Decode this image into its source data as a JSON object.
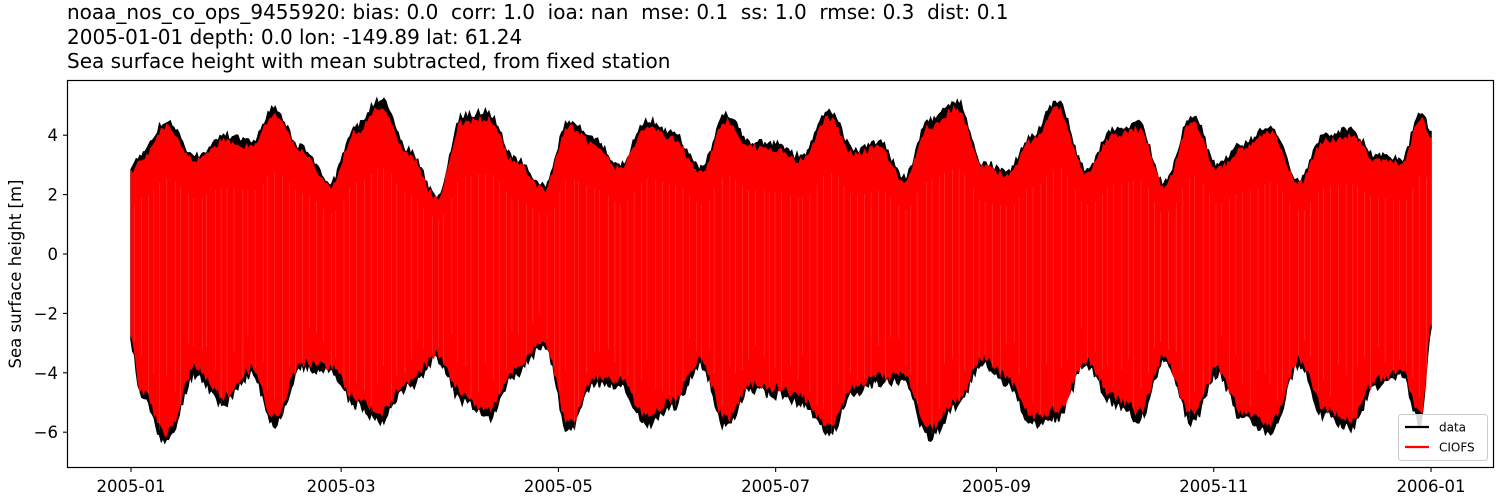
{
  "title": {
    "line1": "noaa_nos_co_ops_9455920: bias: 0.0  corr: 1.0  ioa: nan  mse: 0.1  ss: 1.0  rmse: 0.3  dist: 0.1",
    "line2": "2005-01-01 depth: 0.0 lon: -149.89 lat: 61.24",
    "line3": "Sea surface height with mean subtracted, from fixed station"
  },
  "colors": {
    "data": "#000000",
    "model": "#ff0000",
    "axes": "#000000",
    "legend_border": "#cccccc"
  },
  "chart_data": {
    "type": "line",
    "title": "noaa_nos_co_ops_9455920: bias: 0.0  corr: 1.0  ioa: nan  mse: 0.1  ss: 1.0  rmse: 0.3  dist: 0.1 / 2005-01-01 depth: 0.0 lon: -149.89 lat: 61.24 / Sea surface height with mean subtracted, from fixed station",
    "xlabel": "",
    "ylabel": "Sea surface height [m]",
    "xlim": [
      "2004-12-13",
      "2006-01-18"
    ],
    "ylim": [
      -7.2,
      5.85
    ],
    "grid": false,
    "legend_position": "lower right",
    "x_ticks": [
      "2005-01",
      "2005-03",
      "2005-05",
      "2005-07",
      "2005-09",
      "2005-11",
      "2006-01"
    ],
    "y_ticks": [
      -6,
      -4,
      -2,
      0,
      2,
      4
    ],
    "series": [
      {
        "name": "data",
        "color": "#000000",
        "description": "Observed hourly tidal sea surface height, oscillating semidiurnally; envelope (day-of-year, max, min) approximated below",
        "envelope": {
          "day": [
            0,
            3,
            10,
            18,
            26,
            34,
            40,
            48,
            56,
            63,
            70,
            78,
            86,
            93,
            100,
            108,
            116,
            123,
            130,
            137,
            145,
            152,
            160,
            167,
            174,
            181,
            188,
            196,
            203,
            210,
            217,
            224,
            232,
            239,
            246,
            253,
            260,
            268,
            276,
            283,
            290,
            298,
            305,
            312,
            320,
            328,
            335,
            342,
            350,
            357,
            362,
            365
          ],
          "max": [
            3.0,
            3.5,
            4.6,
            3.4,
            4.1,
            3.9,
            5.0,
            3.7,
            2.5,
            4.4,
            5.3,
            3.6,
            2.05,
            4.75,
            4.9,
            3.3,
            2.4,
            4.6,
            4.0,
            3.1,
            4.6,
            4.2,
            3.0,
            4.8,
            3.9,
            3.8,
            3.4,
            4.95,
            3.6,
            3.9,
            2.7,
            4.6,
            5.25,
            3.2,
            2.9,
            4.1,
            5.25,
            3.0,
            4.3,
            4.5,
            2.5,
            4.8,
            3.1,
            3.8,
            4.4,
            2.6,
            4.1,
            4.3,
            3.4,
            3.3,
            4.9,
            4.3
          ],
          "min": [
            -3.2,
            -5.0,
            -6.5,
            -4.2,
            -5.2,
            -4.2,
            -5.9,
            -4.0,
            -4.1,
            -5.25,
            -5.75,
            -4.6,
            -3.7,
            -5.1,
            -5.7,
            -4.2,
            -3.2,
            -6.15,
            -4.5,
            -4.6,
            -5.9,
            -5.3,
            -3.9,
            -6.0,
            -4.7,
            -4.9,
            -5.2,
            -6.2,
            -4.8,
            -4.5,
            -4.4,
            -6.35,
            -5.3,
            -3.8,
            -4.5,
            -5.9,
            -5.7,
            -3.9,
            -5.2,
            -5.7,
            -3.8,
            -5.8,
            -4.2,
            -5.7,
            -6.1,
            -3.9,
            -5.6,
            -6.0,
            -4.6,
            -4.3,
            -5.9,
            -2.8
          ]
        }
      },
      {
        "name": "CIOFS",
        "color": "#ff0000",
        "description": "Model sea surface height, closely matching data with slightly smaller amplitude extremes",
        "envelope_scale": 0.95
      }
    ]
  },
  "axes": {
    "ylabel": "Sea surface height [m]",
    "x_ticks": [
      {
        "label": "2005-01",
        "day": 0
      },
      {
        "label": "2005-03",
        "day": 59
      },
      {
        "label": "2005-05",
        "day": 120
      },
      {
        "label": "2005-07",
        "day": 181
      },
      {
        "label": "2005-09",
        "day": 243
      },
      {
        "label": "2005-11",
        "day": 304
      },
      {
        "label": "2006-01",
        "day": 365
      }
    ],
    "y_ticks": [
      {
        "label": "4",
        "value": 4
      },
      {
        "label": "2",
        "value": 2
      },
      {
        "label": "0",
        "value": 0
      },
      {
        "label": "−2",
        "value": -2
      },
      {
        "label": "−4",
        "value": -4
      },
      {
        "label": "−6",
        "value": -6
      }
    ]
  },
  "legend": {
    "items": [
      {
        "label": "data",
        "color": "#000000"
      },
      {
        "label": "CIOFS",
        "color": "#ff0000"
      }
    ]
  }
}
